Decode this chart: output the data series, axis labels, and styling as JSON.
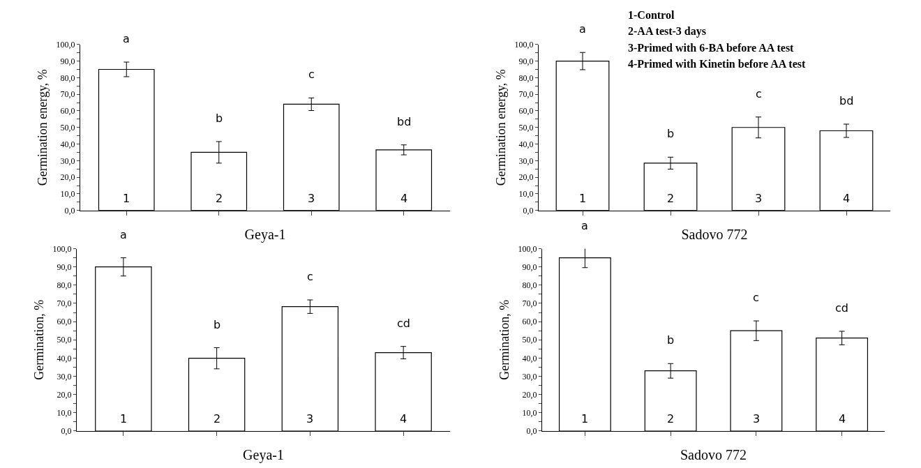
{
  "chart_data": [
    {
      "type": "bar",
      "xlabel": "Geya-1",
      "ylabel": "Germination energy, %",
      "categories": [
        "1",
        "2",
        "3",
        "4"
      ],
      "values": [
        85,
        35,
        64,
        36.5
      ],
      "errors": [
        4.4,
        6.5,
        3.8,
        3
      ],
      "color": "#ffffff",
      "ylim": [
        0,
        100
      ],
      "yticks": [
        {
          "value": 0,
          "label": "0,0"
        },
        {
          "value": 5,
          "label": null
        },
        {
          "value": 10,
          "label": "10,0"
        },
        {
          "value": 15,
          "label": null
        },
        {
          "value": 20,
          "label": "20,0"
        },
        {
          "value": 25,
          "label": null
        },
        {
          "value": 30,
          "label": "30,0"
        },
        {
          "value": 35,
          "label": null
        },
        {
          "value": 40,
          "label": "40,0"
        },
        {
          "value": 45,
          "label": null
        },
        {
          "value": 50,
          "label": "50,0"
        },
        {
          "value": 55,
          "label": null
        },
        {
          "value": 60,
          "label": "60,0"
        },
        {
          "value": 65,
          "label": null
        },
        {
          "value": 70,
          "label": "70,0"
        },
        {
          "value": 75,
          "label": null
        },
        {
          "value": 80,
          "label": "80,0"
        },
        {
          "value": 85,
          "label": null
        },
        {
          "value": 90,
          "label": "90,0"
        },
        {
          "value": 95,
          "label": null
        },
        {
          "value": 100,
          "label": "100,0"
        }
      ],
      "annotations": [
        "a",
        "b",
        "c",
        "bd"
      ]
    },
    {
      "type": "bar",
      "xlabel": "Sadovo 772",
      "ylabel": "Germination energy, %",
      "categories": [
        "1",
        "2",
        "3",
        "4"
      ],
      "values": [
        90,
        28.5,
        50,
        48
      ],
      "errors": [
        5.2,
        3.6,
        6.3,
        4
      ],
      "color": "#ffffff",
      "ylim": [
        0,
        100
      ],
      "yticks": [
        {
          "value": 0,
          "label": "0,0"
        },
        {
          "value": 5,
          "label": null
        },
        {
          "value": 10,
          "label": "10,0"
        },
        {
          "value": 15,
          "label": null
        },
        {
          "value": 20,
          "label": "20,0"
        },
        {
          "value": 25,
          "label": null
        },
        {
          "value": 30,
          "label": "30,0"
        },
        {
          "value": 35,
          "label": null
        },
        {
          "value": 40,
          "label": "40,0"
        },
        {
          "value": 45,
          "label": null
        },
        {
          "value": 50,
          "label": "50,0"
        },
        {
          "value": 55,
          "label": null
        },
        {
          "value": 60,
          "label": "60,0"
        },
        {
          "value": 65,
          "label": null
        },
        {
          "value": 70,
          "label": "70,0"
        },
        {
          "value": 75,
          "label": null
        },
        {
          "value": 80,
          "label": "80,0"
        },
        {
          "value": 85,
          "label": null
        },
        {
          "value": 90,
          "label": "90,0"
        },
        {
          "value": 95,
          "label": null
        },
        {
          "value": 100,
          "label": "100,0"
        }
      ],
      "annotations": [
        "a",
        "b",
        "c",
        "bd",
        "1-Control",
        "2-AA test-3 days",
        "3-Primed with 6-BA before AA test",
        "4-Primed with Kinetin before AA test"
      ]
    },
    {
      "type": "bar",
      "xlabel": "Geya-1",
      "ylabel": "Germination, %",
      "categories": [
        "1",
        "2",
        "3",
        "4"
      ],
      "values": [
        90,
        39.9,
        68.2,
        43
      ],
      "errors": [
        5,
        5.8,
        3.7,
        3.4
      ],
      "color": "#ffffff",
      "ylim": [
        0,
        100
      ],
      "yticks": [
        {
          "value": 0,
          "label": "0,0"
        },
        {
          "value": 5,
          "label": null
        },
        {
          "value": 10,
          "label": "10,0"
        },
        {
          "value": 15,
          "label": null
        },
        {
          "value": 20,
          "label": "20,0"
        },
        {
          "value": 25,
          "label": null
        },
        {
          "value": 30,
          "label": "30,0"
        },
        {
          "value": 35,
          "label": null
        },
        {
          "value": 40,
          "label": "40,0"
        },
        {
          "value": 45,
          "label": null
        },
        {
          "value": 50,
          "label": "50,0"
        },
        {
          "value": 55,
          "label": null
        },
        {
          "value": 60,
          "label": "60,0"
        },
        {
          "value": 65,
          "label": null
        },
        {
          "value": 70,
          "label": "70,0"
        },
        {
          "value": 75,
          "label": null
        },
        {
          "value": 80,
          "label": "80,0"
        },
        {
          "value": 85,
          "label": null
        },
        {
          "value": 90,
          "label": "90,0"
        },
        {
          "value": 95,
          "label": null
        },
        {
          "value": 100,
          "label": "100,0"
        }
      ],
      "annotations": [
        "a",
        "b",
        "c",
        "cd"
      ]
    },
    {
      "type": "bar",
      "xlabel": "Sadovo 772",
      "ylabel": "Germination, %",
      "categories": [
        "1",
        "2",
        "3",
        "4"
      ],
      "values": [
        95,
        33,
        55,
        51
      ],
      "errors": [
        5.4,
        4,
        5.4,
        3.7
      ],
      "color": "#ffffff",
      "ylim": [
        0,
        100
      ],
      "yticks": [
        {
          "value": 0,
          "label": "0,0"
        },
        {
          "value": 5,
          "label": null
        },
        {
          "value": 10,
          "label": "10,0"
        },
        {
          "value": 15,
          "label": null
        },
        {
          "value": 20,
          "label": "20,0"
        },
        {
          "value": 25,
          "label": null
        },
        {
          "value": 30,
          "label": "30,0"
        },
        {
          "value": 35,
          "label": null
        },
        {
          "value": 40,
          "label": "40,0"
        },
        {
          "value": 45,
          "label": null
        },
        {
          "value": 50,
          "label": "50,0"
        },
        {
          "value": 55,
          "label": null
        },
        {
          "value": 60,
          "label": "60,0"
        },
        {
          "value": 65,
          "label": null
        },
        {
          "value": 70,
          "label": "70,0"
        },
        {
          "value": 75,
          "label": null
        },
        {
          "value": 80,
          "label": "80,0"
        },
        {
          "value": 85,
          "label": null
        },
        {
          "value": 90,
          "label": "90,0"
        },
        {
          "value": 95,
          "label": null
        },
        {
          "value": 100,
          "label": "100,0"
        }
      ],
      "annotations": [
        "a",
        "b",
        "c",
        "cd"
      ]
    }
  ]
}
